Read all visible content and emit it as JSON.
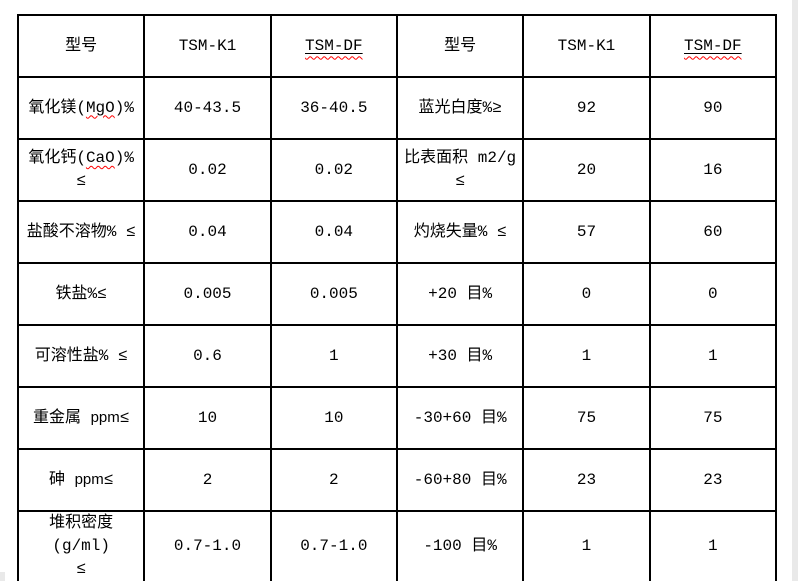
{
  "page": {
    "background_color": "#ffffff",
    "edge_strip_color": "#e9e9e9"
  },
  "table": {
    "border_color": "#000000",
    "squiggle_color": "#ff0000",
    "header": {
      "c0": "型号",
      "c1": "TSM-K1",
      "c2": "TSM-DF",
      "c3": "型号",
      "c4": "TSM-K1",
      "c5": "TSM-DF"
    },
    "rows": [
      {
        "label": {
          "pre": "氧化镁(",
          "mark": "MgO",
          "post": ")%"
        },
        "v1": "40-43.5",
        "v2": "36-40.5",
        "label2": "蓝光白度%≥",
        "v3": "92",
        "v4": "90"
      },
      {
        "label": {
          "pre": "氧化钙(",
          "mark": "CaO",
          "post": ")%",
          "line2": "≤"
        },
        "v1": "0.02",
        "v2": "0.02",
        "label2": {
          "line1": "比表面积 m2/g",
          "line2": "≤"
        },
        "v3": "20",
        "v4": "16"
      },
      {
        "label": "盐酸不溶物% ≤",
        "v1": "0.04",
        "v2": "0.04",
        "label2": "灼烧失量% ≤",
        "v3": "57",
        "v4": "60"
      },
      {
        "label": "铁盐%≤",
        "v1": "0.005",
        "v2": "0.005",
        "label2": "+20 目%",
        "v3": "0",
        "v4": "0"
      },
      {
        "label": "可溶性盐% ≤",
        "v1": "0.6",
        "v2": "1",
        "label2": "+30 目%",
        "v3": "1",
        "v4": "1"
      },
      {
        "label": {
          "pre": "重金属 ",
          "ppm": "ppm",
          "post": "≤"
        },
        "v1": "10",
        "v2": "10",
        "label2": "-30+60 目%",
        "v3": "75",
        "v4": "75"
      },
      {
        "label": {
          "pre": "砷 ",
          "ppm": "ppm",
          "post": "≤"
        },
        "v1": "2",
        "v2": "2",
        "label2": "-60+80 目%",
        "v3": "23",
        "v4": "23"
      },
      {
        "label": {
          "line1": "堆积密度(g/ml)",
          "line2": "≤"
        },
        "v1": "0.7-1.0",
        "v2": "0.7-1.0",
        "label2": "-100 目%",
        "v3": "1",
        "v4": "1"
      }
    ]
  }
}
